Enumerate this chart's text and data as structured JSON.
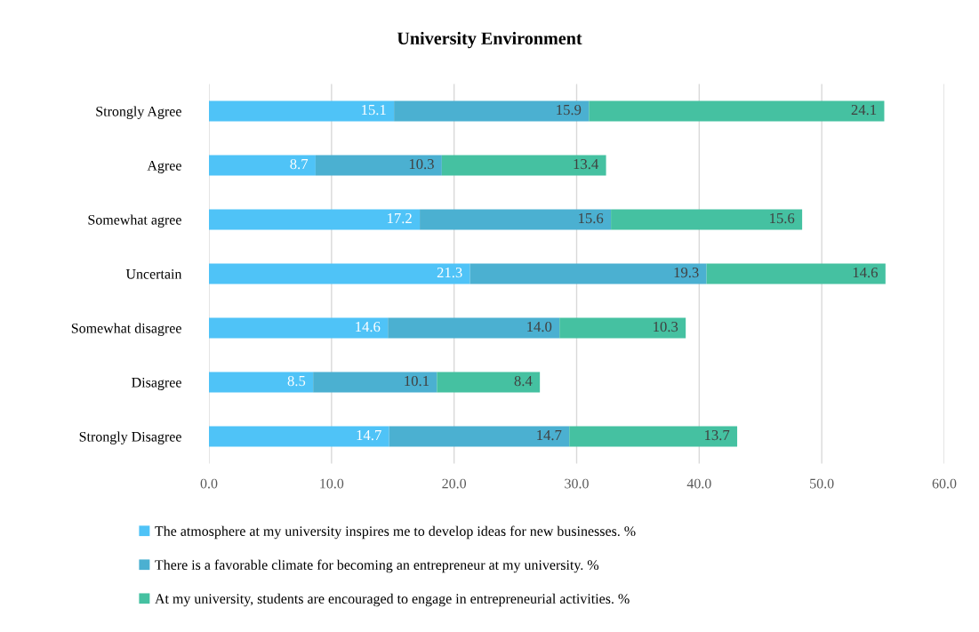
{
  "chart_data": {
    "type": "bar",
    "orientation": "horizontal",
    "stacked": true,
    "title": "University Environment",
    "categories": [
      "Strongly Agree",
      "Agree",
      "Somewhat agree",
      "Uncertain",
      "Somewhat disagree",
      "Disagree",
      "Strongly Disagree"
    ],
    "series": [
      {
        "name": "The atmosphere at my university inspires me to develop ideas for new businesses. %",
        "color": "#4fc3f7",
        "values": [
          15.1,
          8.7,
          17.2,
          21.3,
          14.6,
          8.5,
          14.7
        ],
        "value_labels": [
          "15.1",
          "8.7",
          "17.2",
          "21.3",
          "14.6",
          "8.5",
          "14.7"
        ]
      },
      {
        "name": "There is a favorable climate for becoming an entrepreneur at my university. %",
        "color": "#4bb0d1",
        "values": [
          15.9,
          10.3,
          15.6,
          19.3,
          14.0,
          10.1,
          14.7
        ],
        "value_labels": [
          "15.9",
          "10.3",
          "15.6",
          "19.3",
          "14.0",
          "10.1",
          "14.7"
        ]
      },
      {
        "name": "At my university, students are encouraged to engage in entrepreneurial activities. %",
        "color": "#45c1a1",
        "values": [
          24.1,
          13.4,
          15.6,
          14.6,
          10.3,
          8.4,
          13.7
        ],
        "value_labels": [
          "24.1",
          "13.4",
          "15.6",
          "14.6",
          "10.3",
          "8.4",
          "13.7"
        ]
      }
    ],
    "xlim": [
      0,
      60
    ],
    "xticks": [
      {
        "value": 0,
        "label": "0.0"
      },
      {
        "value": 10,
        "label": "10.0"
      },
      {
        "value": 20,
        "label": "20.0"
      },
      {
        "value": 30,
        "label": "30.0"
      },
      {
        "value": 40,
        "label": "40.0"
      },
      {
        "value": 50,
        "label": "50.0"
      },
      {
        "value": 60,
        "label": "60.0"
      }
    ],
    "grid": "x",
    "legend": "bottom"
  }
}
